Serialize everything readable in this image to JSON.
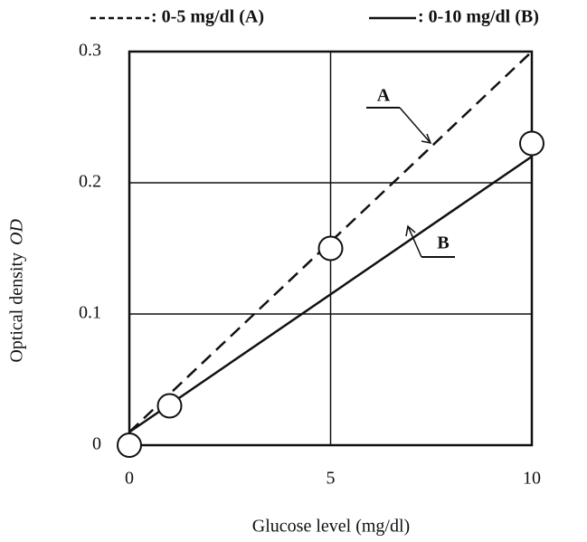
{
  "chart_data": {
    "type": "line",
    "xlabel": "Glucose level (mg/dl)",
    "ylabel": "Optical density",
    "ylabel_symbol": "OD",
    "xlim": [
      0,
      10
    ],
    "ylim": [
      0,
      0.3
    ],
    "xticks": [
      0,
      5,
      10
    ],
    "yticks": [
      0,
      0.1,
      0.2,
      0.3
    ],
    "grid": true,
    "series": [
      {
        "name": ": 0-5 mg/dl (A)",
        "color": "#111111",
        "dash": true,
        "x": [
          0,
          10
        ],
        "values": [
          0.01,
          0.3
        ]
      },
      {
        "name": ": 0-10 mg/dl (B)",
        "color": "#111111",
        "dash": false,
        "x": [
          0,
          10
        ],
        "values": [
          0.01,
          0.22
        ]
      }
    ],
    "points": {
      "x": [
        0,
        1,
        5,
        10
      ],
      "values": [
        0,
        0.03,
        0.15,
        0.23
      ]
    },
    "annotations": [
      "A",
      "B"
    ]
  }
}
